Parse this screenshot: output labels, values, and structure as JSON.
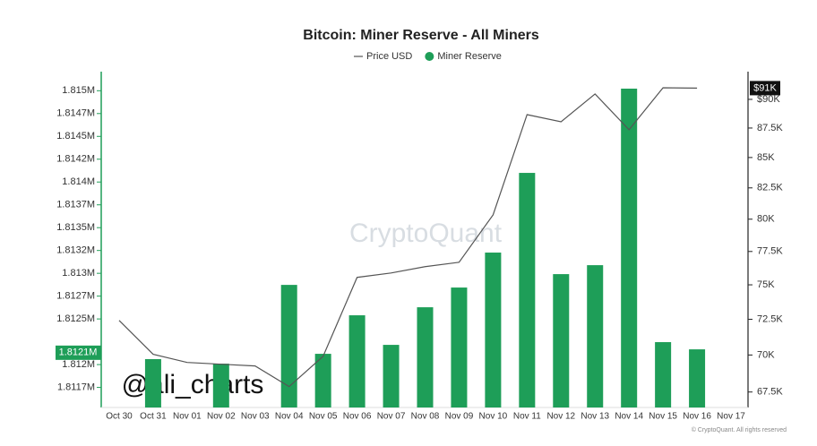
{
  "chart_data": {
    "type": "bar_line",
    "title": "Bitcoin: Miner Reserve - All Miners",
    "watermark": "CryptoQuant",
    "credit": "@ali_charts",
    "copyright": "© CryptoQuant. All rights reserved",
    "categories": [
      "Oct 30",
      "Oct 31",
      "Nov 01",
      "Nov 02",
      "Nov 03",
      "Nov 04",
      "Nov 05",
      "Nov 06",
      "Nov 07",
      "Nov 08",
      "Nov 09",
      "Nov 10",
      "Nov 11",
      "Nov 12",
      "Nov 13",
      "Nov 14",
      "Nov 15",
      "Nov 16",
      "Nov 17"
    ],
    "series": [
      {
        "name": "Price USD",
        "type": "line",
        "axis": "y2",
        "color": "#555555",
        "values": [
          72420,
          70050,
          69490,
          69370,
          69250,
          67860,
          69910,
          75550,
          75880,
          76350,
          76680,
          80340,
          88660,
          88040,
          90480,
          87350,
          91030,
          91000,
          null
        ]
      },
      {
        "name": "Miner Reserve",
        "type": "bar",
        "color": "#1e9e58",
        "values": [
          null,
          1812030,
          null,
          1811980,
          null,
          1812843,
          1812088,
          1812510,
          1812186,
          1812598,
          1812814,
          1813197,
          1814070,
          1812961,
          1813059,
          1814993,
          1812216,
          1812137,
          null
        ]
      }
    ],
    "ylim": [
      1811500,
      1815130
    ],
    "yticks": [
      {
        "value": 1814970,
        "label": "1.815M"
      },
      {
        "value": 1814720,
        "label": "1.8147M"
      },
      {
        "value": 1814470,
        "label": "1.8145M"
      },
      {
        "value": 1814220,
        "label": "1.8142M"
      },
      {
        "value": 1813970,
        "label": "1.814M"
      },
      {
        "value": 1813720,
        "label": "1.8137M"
      },
      {
        "value": 1813470,
        "label": "1.8135M"
      },
      {
        "value": 1813220,
        "label": "1.8132M"
      },
      {
        "value": 1812970,
        "label": "1.813M"
      },
      {
        "value": 1812720,
        "label": "1.8127M"
      },
      {
        "value": 1812470,
        "label": "1.8125M"
      },
      {
        "value": 1811970,
        "label": "1.812M"
      },
      {
        "value": 1811720,
        "label": "1.8117M"
      }
    ],
    "y2lim": [
      66480,
      92080
    ],
    "y2log": true,
    "y2ticks": [
      {
        "value": 90000,
        "label": "$90K"
      },
      {
        "value": 87500,
        "label": "87.5K"
      },
      {
        "value": 85000,
        "label": "85K"
      },
      {
        "value": 82500,
        "label": "82.5K"
      },
      {
        "value": 80000,
        "label": "80K"
      },
      {
        "value": 77500,
        "label": "77.5K"
      },
      {
        "value": 75000,
        "label": "75K"
      },
      {
        "value": 72500,
        "label": "72.5K"
      },
      {
        "value": 70000,
        "label": "70K"
      },
      {
        "value": 67500,
        "label": "67.5K"
      }
    ],
    "reserve_marker": {
      "value": 1812100,
      "label": "1.8121M"
    },
    "price_marker": {
      "value": 91000,
      "label": "$91K"
    },
    "legend": "top"
  }
}
